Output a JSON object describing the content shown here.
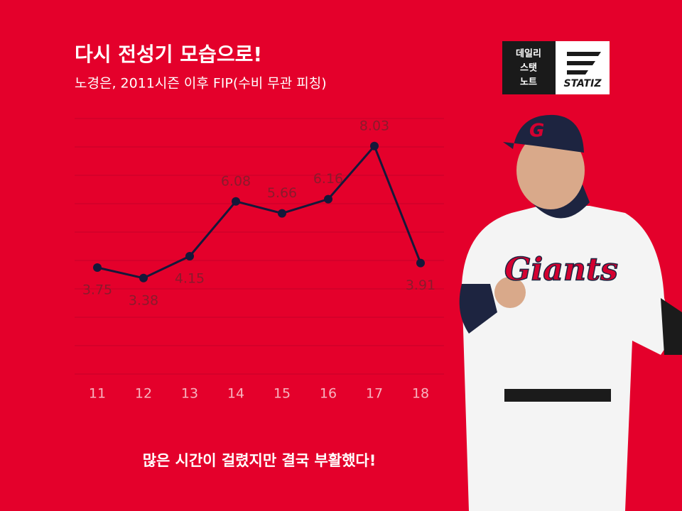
{
  "chart_data": {
    "type": "line",
    "title": "다시 전성기 모습으로!",
    "subtitle": "노경은, 2011시즌 이후 FIP(수비 무관 피칭)",
    "categories": [
      "11",
      "12",
      "13",
      "14",
      "15",
      "16",
      "17",
      "18"
    ],
    "values": [
      3.75,
      3.38,
      4.15,
      6.08,
      5.66,
      6.16,
      8.03,
      3.91
    ],
    "color": "#15183a",
    "ylim": [
      0,
      9
    ],
    "yticks": [
      0,
      1,
      2,
      3,
      4,
      5,
      6,
      7,
      8,
      9
    ],
    "grid": true,
    "annotation": "많은 시간이 걸렸지만 결국 부활했다!"
  },
  "brand": {
    "lines": [
      "데일리",
      "스탯",
      "노트"
    ],
    "name": "STATIZ"
  },
  "photo": {
    "jersey": "Giants"
  }
}
